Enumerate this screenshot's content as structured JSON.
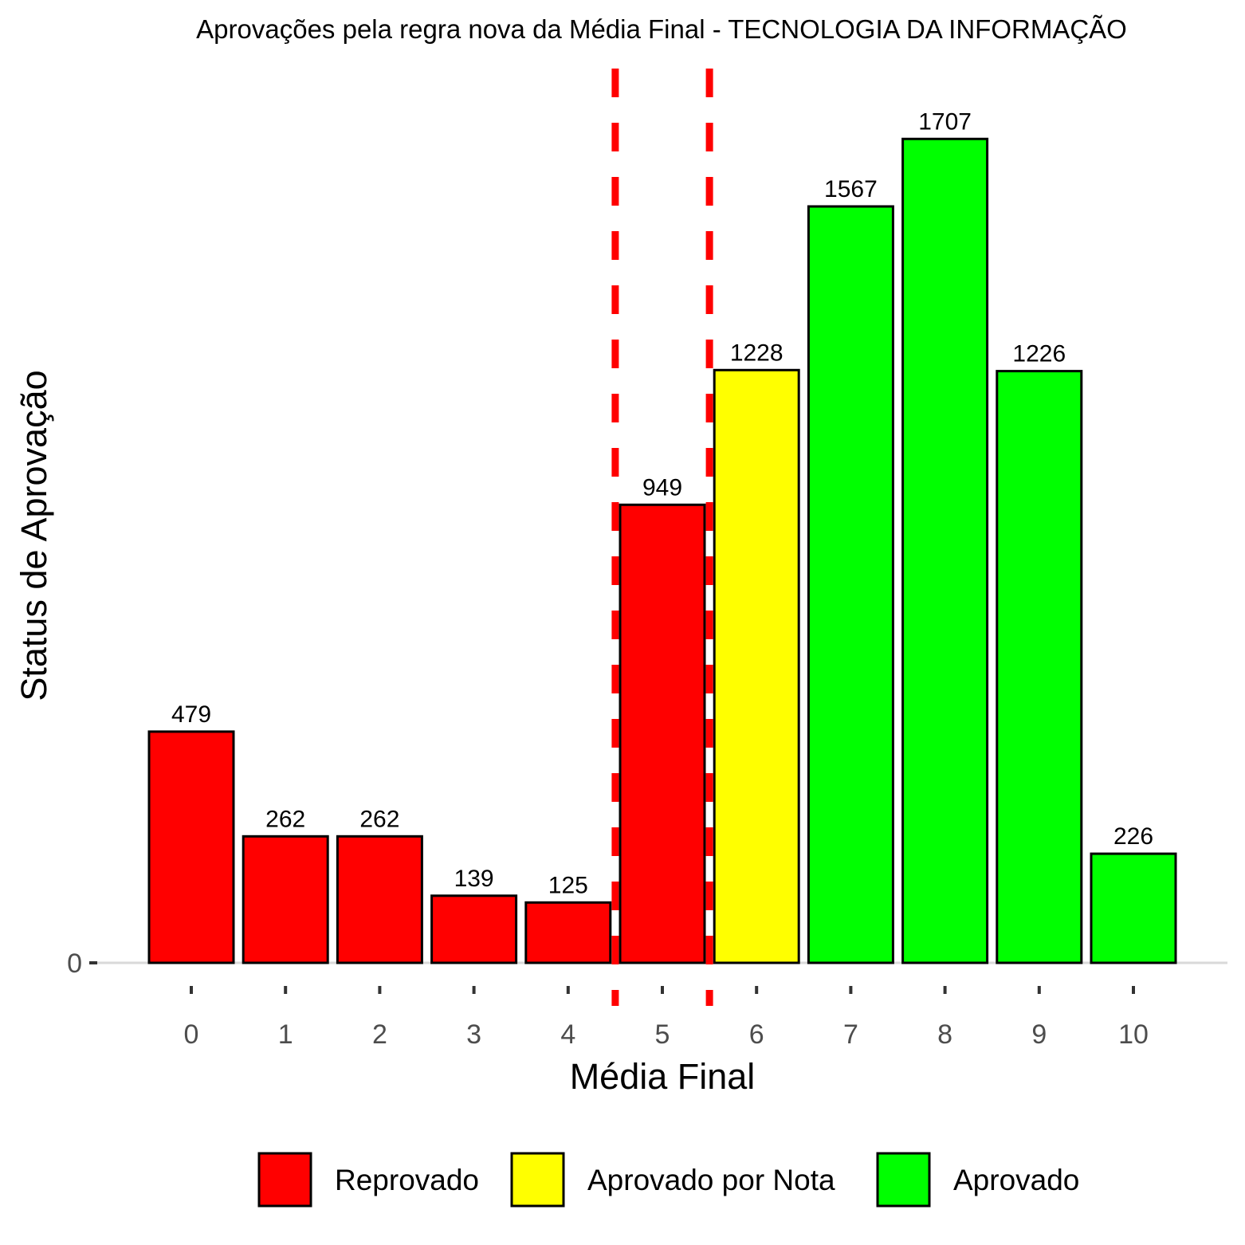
{
  "chart_data": {
    "type": "bar",
    "title": "Aprovações pela regra nova da Média Final - TECNOLOGIA DA INFORMAÇÃO",
    "xlabel": "Média Final",
    "ylabel": "Status de Aprovação",
    "categories": [
      "0",
      "1",
      "2",
      "3",
      "4",
      "5",
      "6",
      "7",
      "8",
      "9",
      "10"
    ],
    "values": [
      479,
      262,
      262,
      139,
      125,
      949,
      1228,
      1567,
      1707,
      1226,
      226
    ],
    "status": [
      "Reprovado",
      "Reprovado",
      "Reprovado",
      "Reprovado",
      "Reprovado",
      "Reprovado",
      "Aprovado por Nota",
      "Aprovado",
      "Aprovado",
      "Aprovado",
      "Aprovado"
    ],
    "yticks": [
      0
    ],
    "ylim": [
      0,
      1790
    ],
    "reference_lines_x": [
      4.5,
      5.5
    ],
    "reference_line_color": "#ff0000",
    "legend": [
      {
        "label": "Reprovado",
        "color": "#ff0000"
      },
      {
        "label": "Aprovado por Nota",
        "color": "#ffff00"
      },
      {
        "label": "Aprovado",
        "color": "#00ff00"
      }
    ],
    "legend_position": "bottom",
    "grid": false
  }
}
